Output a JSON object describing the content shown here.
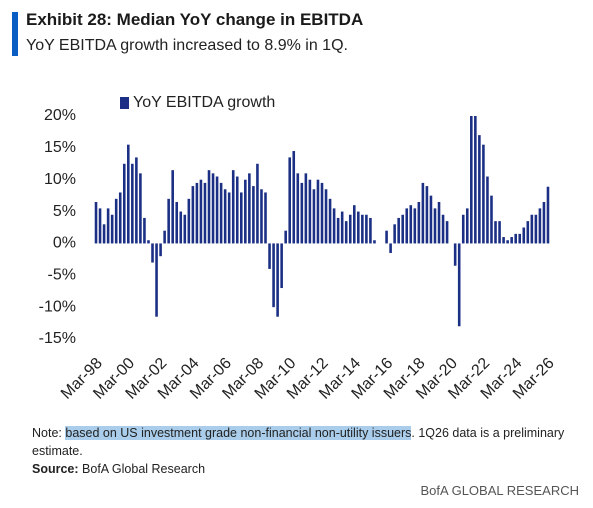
{
  "chart_data": {
    "type": "bar",
    "title": "Exhibit 28: Median YoY change in EBITDA",
    "subtitle": "YoY EBITDA growth increased to 8.9% in 1Q.",
    "categories": [
      "Mar-98",
      null,
      null,
      null,
      null,
      null,
      null,
      null,
      "Mar-00",
      null,
      null,
      null,
      null,
      null,
      null,
      null,
      "Mar-02",
      null,
      null,
      null,
      null,
      null,
      null,
      null,
      "Mar-04",
      null,
      null,
      null,
      null,
      null,
      null,
      null,
      "Mar-06",
      null,
      null,
      null,
      null,
      null,
      null,
      null,
      "Mar-08",
      null,
      null,
      null,
      null,
      null,
      null,
      null,
      "Mar-10",
      null,
      null,
      null,
      null,
      null,
      null,
      null,
      "Mar-12",
      null,
      null,
      null,
      null,
      null,
      null,
      null,
      "Mar-14",
      null,
      null,
      null,
      null,
      null,
      null,
      null,
      "Mar-16",
      null,
      null,
      null,
      null,
      null,
      null,
      null,
      "Mar-18",
      null,
      null,
      null,
      null,
      null,
      null,
      null,
      "Mar-20",
      null,
      null,
      null,
      null,
      null,
      null,
      null,
      "Mar-22",
      null,
      null,
      null,
      null,
      null,
      null,
      null,
      "Mar-24",
      null,
      null,
      null,
      null,
      null,
      null,
      null,
      "Mar-26"
    ],
    "series": [
      {
        "name": "YoY EBITDA growth",
        "color": "#1b2f84",
        "values": [
          6.5,
          5.5,
          3,
          5.5,
          4.5,
          7,
          8,
          12.5,
          15.5,
          12.5,
          13.5,
          11,
          4,
          0.5,
          -3,
          -11.5,
          -2,
          2,
          7,
          11.5,
          6.5,
          5,
          4.5,
          7,
          9,
          9.5,
          10,
          9.5,
          11.5,
          11,
          10.5,
          9.5,
          8.5,
          8,
          11.5,
          10.5,
          8,
          10,
          11,
          9,
          12.5,
          8.5,
          8,
          -4,
          -10,
          -11.5,
          -7,
          2,
          13.5,
          14.5,
          11,
          9.5,
          11,
          10,
          8.5,
          10,
          9.5,
          8.5,
          7,
          5.5,
          4,
          5,
          3.5,
          4.5,
          6,
          5,
          4.5,
          4.5,
          4,
          0.5,
          0,
          0,
          2,
          -1.5,
          3,
          4,
          4.5,
          5.5,
          6,
          5.5,
          6.5,
          9.5,
          9,
          7.5,
          5.5,
          6.5,
          4.5,
          3.5,
          0,
          -3.5,
          -13,
          4.5,
          5.5,
          20,
          20,
          17,
          15.5,
          10.5,
          7.5,
          3.5,
          3.5,
          1,
          0.5,
          1,
          1.5,
          1.5,
          2.5,
          3.5,
          4.5,
          4.5,
          5.5,
          6.5,
          8.9
        ]
      }
    ],
    "ylim": [
      -15,
      20
    ],
    "yticks": [
      {
        "value": 20,
        "label": "20%"
      },
      {
        "value": 15,
        "label": "15%"
      },
      {
        "value": 10,
        "label": "10%"
      },
      {
        "value": 5,
        "label": "5%"
      },
      {
        "value": 0,
        "label": "0%"
      },
      {
        "value": -5,
        "label": "-5%"
      },
      {
        "value": -10,
        "label": "-10%"
      },
      {
        "value": -15,
        "label": "-15%"
      }
    ],
    "grid": false
  },
  "notes": {
    "note_prefix": "Note:",
    "note_highlight": "based on US investment grade non-financial non-utility issuers",
    "note_rest": ". 1Q26 data is a preliminary estimate.",
    "source_label": "Source:",
    "source_text": "BofA Global Research",
    "brand": "BofA GLOBAL RESEARCH"
  }
}
